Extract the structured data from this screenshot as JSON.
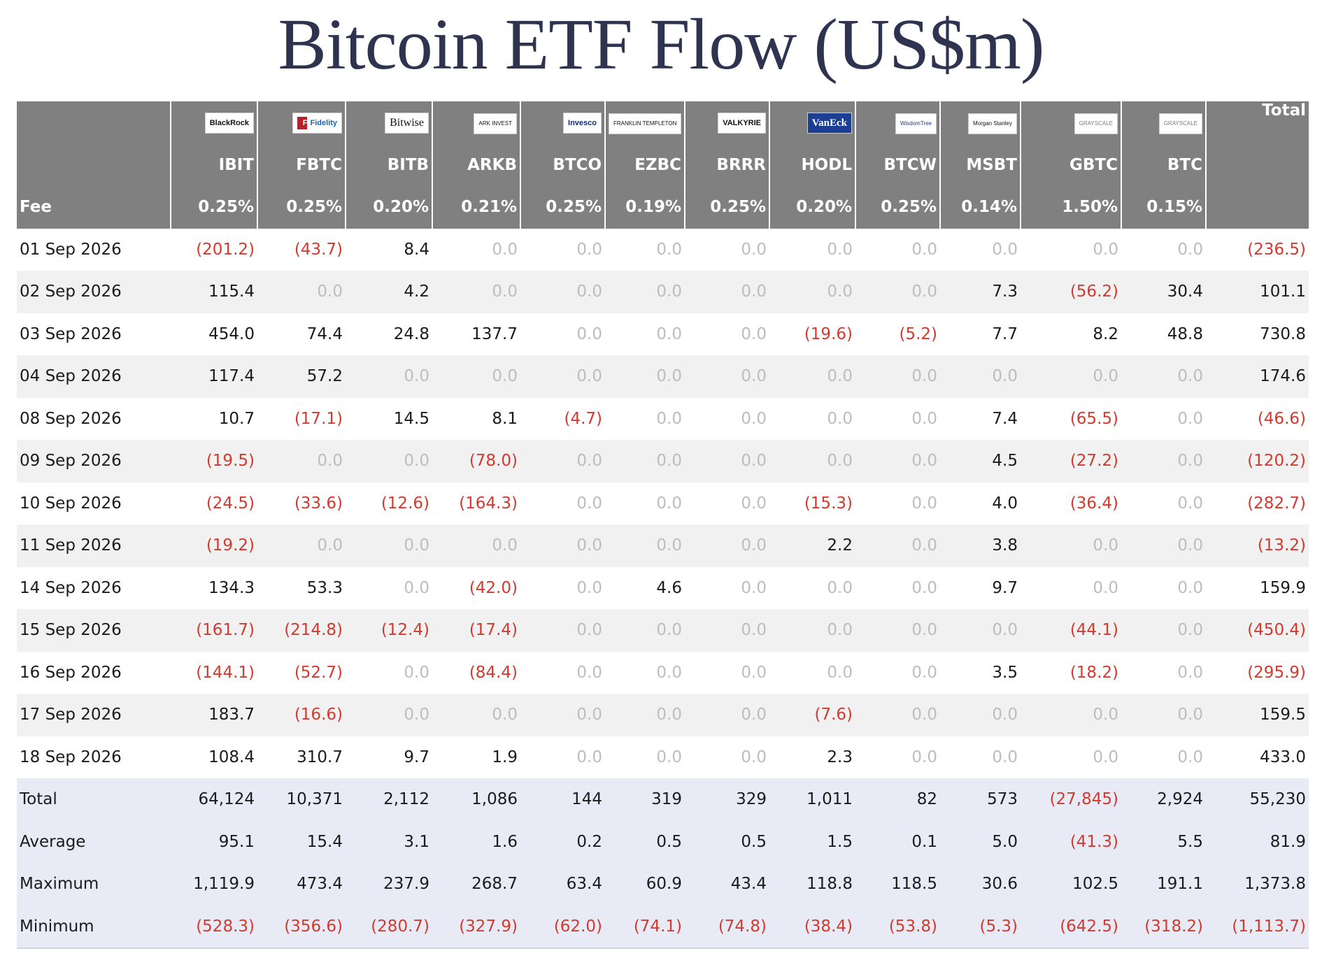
{
  "title": "Bitcoin ETF Flow (US$m)",
  "colors": {
    "header_bg": "#808080",
    "negative": "#d23a2e",
    "zero": "#bdbdbd",
    "summary_bg": "#e8ebf6",
    "stripe_bg": "#f1f1f1",
    "title": "#2e3450"
  },
  "columns": [
    {
      "ticker": "IBIT",
      "issuer": "BlackRock",
      "fee": "0.25%"
    },
    {
      "ticker": "FBTC",
      "issuer": "Fidelity",
      "fee": "0.25%"
    },
    {
      "ticker": "BITB",
      "issuer": "Bitwise",
      "fee": "0.20%"
    },
    {
      "ticker": "ARKB",
      "issuer": "ARK INVEST",
      "fee": "0.21%"
    },
    {
      "ticker": "BTCO",
      "issuer": "Invesco",
      "fee": "0.25%"
    },
    {
      "ticker": "EZBC",
      "issuer": "FRANKLIN TEMPLETON",
      "fee": "0.19%"
    },
    {
      "ticker": "BRRR",
      "issuer": "VALKYRIE",
      "fee": "0.25%"
    },
    {
      "ticker": "HODL",
      "issuer": "VanEck",
      "fee": "0.20%"
    },
    {
      "ticker": "BTCW",
      "issuer": "WisdomTree",
      "fee": "0.25%"
    },
    {
      "ticker": "MSBT",
      "issuer": "Morgan Stanley",
      "fee": "0.14%"
    },
    {
      "ticker": "GBTC",
      "issuer": "GRAYSCALE",
      "fee": "1.50%"
    },
    {
      "ticker": "BTC",
      "issuer": "GRAYSCALE",
      "fee": "0.15%"
    }
  ],
  "total_header": "Total",
  "fee_label": "Fee",
  "rows": [
    {
      "date": "01 Sep 2026",
      "values": [
        "(201.2)",
        "(43.7)",
        "8.4",
        "0.0",
        "0.0",
        "0.0",
        "0.0",
        "0.0",
        "0.0",
        "0.0",
        "0.0",
        "0.0"
      ],
      "total": "(236.5)"
    },
    {
      "date": "02 Sep 2026",
      "values": [
        "115.4",
        "0.0",
        "4.2",
        "0.0",
        "0.0",
        "0.0",
        "0.0",
        "0.0",
        "0.0",
        "7.3",
        "(56.2)",
        "30.4"
      ],
      "total": "101.1"
    },
    {
      "date": "03 Sep 2026",
      "values": [
        "454.0",
        "74.4",
        "24.8",
        "137.7",
        "0.0",
        "0.0",
        "0.0",
        "(19.6)",
        "(5.2)",
        "7.7",
        "8.2",
        "48.8"
      ],
      "total": "730.8"
    },
    {
      "date": "04 Sep 2026",
      "values": [
        "117.4",
        "57.2",
        "0.0",
        "0.0",
        "0.0",
        "0.0",
        "0.0",
        "0.0",
        "0.0",
        "0.0",
        "0.0",
        "0.0"
      ],
      "total": "174.6"
    },
    {
      "date": "08 Sep 2026",
      "values": [
        "10.7",
        "(17.1)",
        "14.5",
        "8.1",
        "(4.7)",
        "0.0",
        "0.0",
        "0.0",
        "0.0",
        "7.4",
        "(65.5)",
        "0.0"
      ],
      "total": "(46.6)"
    },
    {
      "date": "09 Sep 2026",
      "values": [
        "(19.5)",
        "0.0",
        "0.0",
        "(78.0)",
        "0.0",
        "0.0",
        "0.0",
        "0.0",
        "0.0",
        "4.5",
        "(27.2)",
        "0.0"
      ],
      "total": "(120.2)"
    },
    {
      "date": "10 Sep 2026",
      "values": [
        "(24.5)",
        "(33.6)",
        "(12.6)",
        "(164.3)",
        "0.0",
        "0.0",
        "0.0",
        "(15.3)",
        "0.0",
        "4.0",
        "(36.4)",
        "0.0"
      ],
      "total": "(282.7)"
    },
    {
      "date": "11 Sep 2026",
      "values": [
        "(19.2)",
        "0.0",
        "0.0",
        "0.0",
        "0.0",
        "0.0",
        "0.0",
        "2.2",
        "0.0",
        "3.8",
        "0.0",
        "0.0"
      ],
      "total": "(13.2)"
    },
    {
      "date": "14 Sep 2026",
      "values": [
        "134.3",
        "53.3",
        "0.0",
        "(42.0)",
        "0.0",
        "4.6",
        "0.0",
        "0.0",
        "0.0",
        "9.7",
        "0.0",
        "0.0"
      ],
      "total": "159.9"
    },
    {
      "date": "15 Sep 2026",
      "values": [
        "(161.7)",
        "(214.8)",
        "(12.4)",
        "(17.4)",
        "0.0",
        "0.0",
        "0.0",
        "0.0",
        "0.0",
        "0.0",
        "(44.1)",
        "0.0"
      ],
      "total": "(450.4)"
    },
    {
      "date": "16 Sep 2026",
      "values": [
        "(144.1)",
        "(52.7)",
        "0.0",
        "(84.4)",
        "0.0",
        "0.0",
        "0.0",
        "0.0",
        "0.0",
        "3.5",
        "(18.2)",
        "0.0"
      ],
      "total": "(295.9)"
    },
    {
      "date": "17 Sep 2026",
      "values": [
        "183.7",
        "(16.6)",
        "0.0",
        "0.0",
        "0.0",
        "0.0",
        "0.0",
        "(7.6)",
        "0.0",
        "0.0",
        "0.0",
        "0.0"
      ],
      "total": "159.5"
    },
    {
      "date": "18 Sep 2026",
      "values": [
        "108.4",
        "310.7",
        "9.7",
        "1.9",
        "0.0",
        "0.0",
        "0.0",
        "2.3",
        "0.0",
        "0.0",
        "0.0",
        "0.0"
      ],
      "total": "433.0"
    }
  ],
  "summary": [
    {
      "label": "Total",
      "values": [
        "64,124",
        "10,371",
        "2,112",
        "1,086",
        "144",
        "319",
        "329",
        "1,011",
        "82",
        "573",
        "(27,845)",
        "2,924"
      ],
      "total": "55,230"
    },
    {
      "label": "Average",
      "values": [
        "95.1",
        "15.4",
        "3.1",
        "1.6",
        "0.2",
        "0.5",
        "0.5",
        "1.5",
        "0.1",
        "5.0",
        "(41.3)",
        "5.5"
      ],
      "total": "81.9"
    },
    {
      "label": "Maximum",
      "values": [
        "1,119.9",
        "473.4",
        "237.9",
        "268.7",
        "63.4",
        "60.9",
        "43.4",
        "118.8",
        "118.5",
        "30.6",
        "102.5",
        "191.1"
      ],
      "total": "1,373.8"
    },
    {
      "label": "Minimum",
      "values": [
        "(528.3)",
        "(356.6)",
        "(280.7)",
        "(327.9)",
        "(62.0)",
        "(74.1)",
        "(74.8)",
        "(38.4)",
        "(53.8)",
        "(5.3)",
        "(642.5)",
        "(318.2)"
      ],
      "total": "(1,113.7)"
    }
  ]
}
